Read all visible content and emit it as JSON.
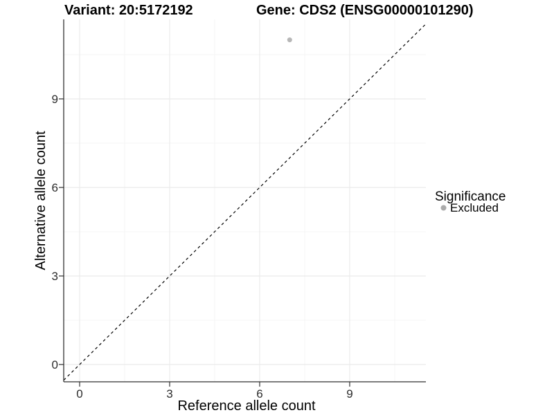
{
  "page": {
    "background": "#ffffff"
  },
  "chart_data": {
    "type": "scatter",
    "title_left": "Variant: 20:5172192",
    "title_right": "Gene: CDS2 (ENSG00000101290)",
    "xlabel": "Reference allele count",
    "ylabel": "Alternative allele count",
    "x_ticks": [
      0,
      3,
      6,
      9
    ],
    "y_ticks": [
      0,
      3,
      6,
      9
    ],
    "x_minor_ticks": [
      1.5,
      4.5,
      7.5,
      10.5
    ],
    "y_minor_ticks": [
      1.5,
      4.5,
      7.5,
      10.5
    ],
    "xlim": [
      -0.53,
      11.54
    ],
    "ylim": [
      -0.59,
      11.69
    ],
    "grid": "major+minor",
    "points": [
      {
        "x": 7,
        "y": 11,
        "series": "Excluded",
        "color": "#b3b3b3"
      }
    ],
    "reference_line": {
      "kind": "identity",
      "slope": 1,
      "intercept": 0,
      "style": "dashed",
      "color": "#000000"
    },
    "legend": {
      "title": "Significance",
      "position": "right",
      "entries": [
        {
          "label": "Excluded",
          "marker": "circle",
          "color": "#ababab"
        }
      ]
    }
  },
  "colors": {
    "grid_major": "#ebebeb",
    "grid_minor": "#f5f5f5",
    "axis_line": "#2f2f2f",
    "tick_mark": "#2f2f2f",
    "point": "#b3b3b3"
  }
}
